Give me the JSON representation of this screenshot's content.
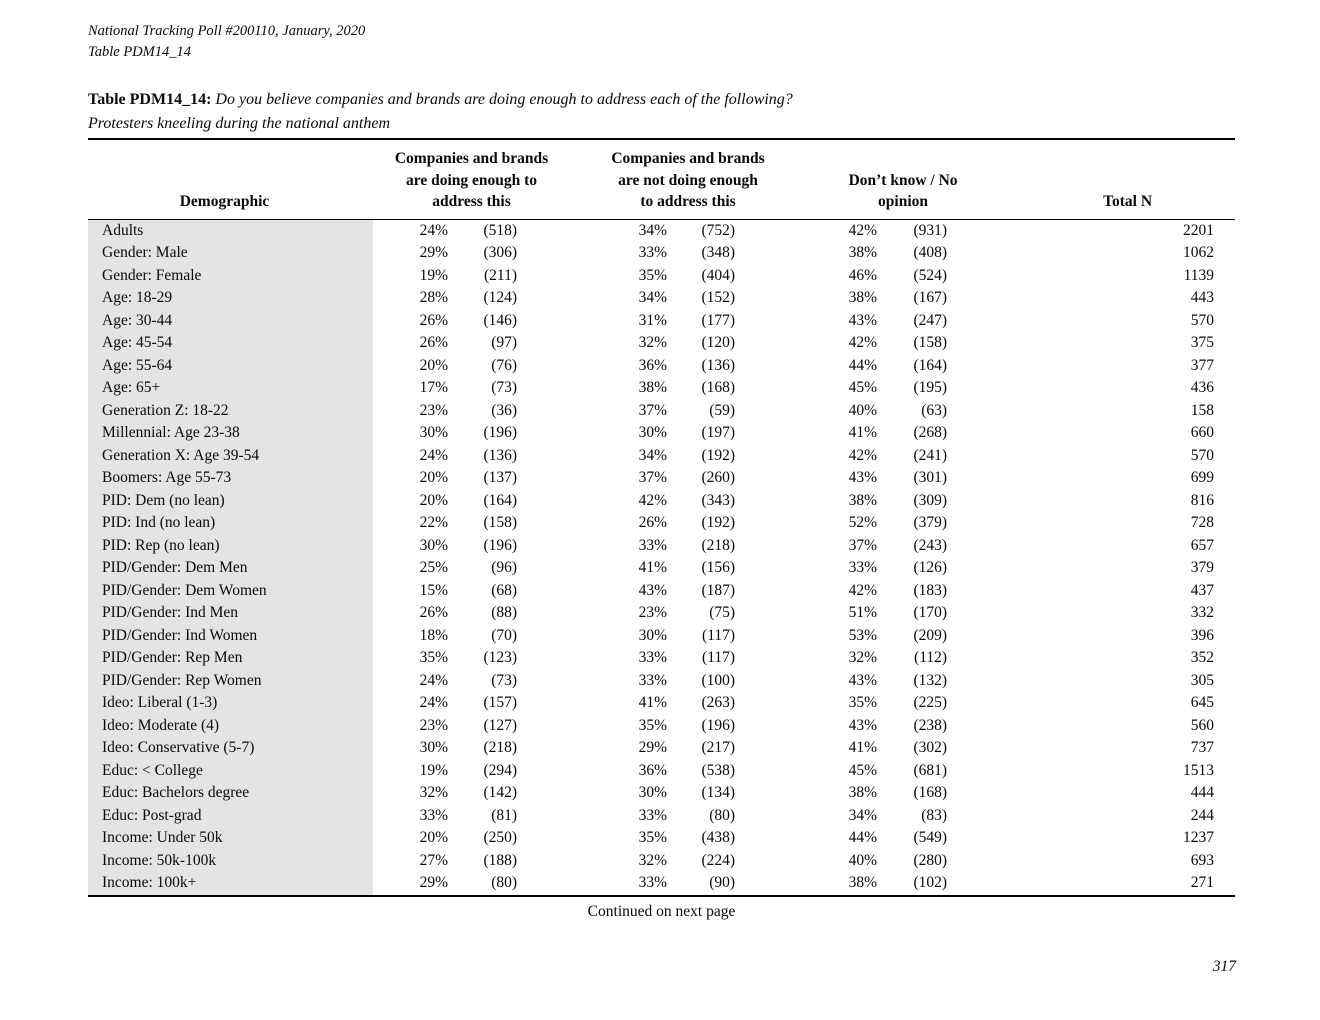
{
  "page": {
    "header_line1": "National Tracking Poll #200110, January, 2020",
    "header_line2": "Table PDM14_14",
    "continued": "Continued on next page",
    "page_number": "317"
  },
  "table": {
    "title_label": "Table PDM14_14:",
    "title_question": "Do you believe companies and brands are doing enough to address each of the following?",
    "subtitle": "Protesters kneeling during the national anthem",
    "columns": {
      "demographic": "Demographic",
      "group_doing": [
        "Companies and brands",
        "are doing enough to",
        "address this"
      ],
      "group_not_doing": [
        "Companies and brands",
        "are not doing enough",
        "to address this"
      ],
      "group_dk": [
        "Don’t know / No",
        "opinion"
      ],
      "total": "Total N"
    },
    "rows": [
      {
        "demographic": "Adults",
        "doing_pct": "24%",
        "doing_n": "(518)",
        "not_doing_pct": "34%",
        "not_doing_n": "(752)",
        "dk_pct": "42%",
        "dk_n": "(931)",
        "total_n": "2201"
      },
      {
        "demographic": "Gender: Male",
        "doing_pct": "29%",
        "doing_n": "(306)",
        "not_doing_pct": "33%",
        "not_doing_n": "(348)",
        "dk_pct": "38%",
        "dk_n": "(408)",
        "total_n": "1062"
      },
      {
        "demographic": "Gender: Female",
        "doing_pct": "19%",
        "doing_n": "(211)",
        "not_doing_pct": "35%",
        "not_doing_n": "(404)",
        "dk_pct": "46%",
        "dk_n": "(524)",
        "total_n": "1139"
      },
      {
        "demographic": "Age: 18-29",
        "doing_pct": "28%",
        "doing_n": "(124)",
        "not_doing_pct": "34%",
        "not_doing_n": "(152)",
        "dk_pct": "38%",
        "dk_n": "(167)",
        "total_n": "443"
      },
      {
        "demographic": "Age: 30-44",
        "doing_pct": "26%",
        "doing_n": "(146)",
        "not_doing_pct": "31%",
        "not_doing_n": "(177)",
        "dk_pct": "43%",
        "dk_n": "(247)",
        "total_n": "570"
      },
      {
        "demographic": "Age: 45-54",
        "doing_pct": "26%",
        "doing_n": "(97)",
        "not_doing_pct": "32%",
        "not_doing_n": "(120)",
        "dk_pct": "42%",
        "dk_n": "(158)",
        "total_n": "375"
      },
      {
        "demographic": "Age: 55-64",
        "doing_pct": "20%",
        "doing_n": "(76)",
        "not_doing_pct": "36%",
        "not_doing_n": "(136)",
        "dk_pct": "44%",
        "dk_n": "(164)",
        "total_n": "377"
      },
      {
        "demographic": "Age: 65+",
        "doing_pct": "17%",
        "doing_n": "(73)",
        "not_doing_pct": "38%",
        "not_doing_n": "(168)",
        "dk_pct": "45%",
        "dk_n": "(195)",
        "total_n": "436"
      },
      {
        "demographic": "Generation Z: 18-22",
        "doing_pct": "23%",
        "doing_n": "(36)",
        "not_doing_pct": "37%",
        "not_doing_n": "(59)",
        "dk_pct": "40%",
        "dk_n": "(63)",
        "total_n": "158"
      },
      {
        "demographic": "Millennial: Age 23-38",
        "doing_pct": "30%",
        "doing_n": "(196)",
        "not_doing_pct": "30%",
        "not_doing_n": "(197)",
        "dk_pct": "41%",
        "dk_n": "(268)",
        "total_n": "660"
      },
      {
        "demographic": "Generation X: Age 39-54",
        "doing_pct": "24%",
        "doing_n": "(136)",
        "not_doing_pct": "34%",
        "not_doing_n": "(192)",
        "dk_pct": "42%",
        "dk_n": "(241)",
        "total_n": "570"
      },
      {
        "demographic": "Boomers: Age 55-73",
        "doing_pct": "20%",
        "doing_n": "(137)",
        "not_doing_pct": "37%",
        "not_doing_n": "(260)",
        "dk_pct": "43%",
        "dk_n": "(301)",
        "total_n": "699"
      },
      {
        "demographic": "PID: Dem (no lean)",
        "doing_pct": "20%",
        "doing_n": "(164)",
        "not_doing_pct": "42%",
        "not_doing_n": "(343)",
        "dk_pct": "38%",
        "dk_n": "(309)",
        "total_n": "816"
      },
      {
        "demographic": "PID: Ind (no lean)",
        "doing_pct": "22%",
        "doing_n": "(158)",
        "not_doing_pct": "26%",
        "not_doing_n": "(192)",
        "dk_pct": "52%",
        "dk_n": "(379)",
        "total_n": "728"
      },
      {
        "demographic": "PID: Rep (no lean)",
        "doing_pct": "30%",
        "doing_n": "(196)",
        "not_doing_pct": "33%",
        "not_doing_n": "(218)",
        "dk_pct": "37%",
        "dk_n": "(243)",
        "total_n": "657"
      },
      {
        "demographic": "PID/Gender: Dem Men",
        "doing_pct": "25%",
        "doing_n": "(96)",
        "not_doing_pct": "41%",
        "not_doing_n": "(156)",
        "dk_pct": "33%",
        "dk_n": "(126)",
        "total_n": "379"
      },
      {
        "demographic": "PID/Gender: Dem Women",
        "doing_pct": "15%",
        "doing_n": "(68)",
        "not_doing_pct": "43%",
        "not_doing_n": "(187)",
        "dk_pct": "42%",
        "dk_n": "(183)",
        "total_n": "437"
      },
      {
        "demographic": "PID/Gender: Ind Men",
        "doing_pct": "26%",
        "doing_n": "(88)",
        "not_doing_pct": "23%",
        "not_doing_n": "(75)",
        "dk_pct": "51%",
        "dk_n": "(170)",
        "total_n": "332"
      },
      {
        "demographic": "PID/Gender: Ind Women",
        "doing_pct": "18%",
        "doing_n": "(70)",
        "not_doing_pct": "30%",
        "not_doing_n": "(117)",
        "dk_pct": "53%",
        "dk_n": "(209)",
        "total_n": "396"
      },
      {
        "demographic": "PID/Gender: Rep Men",
        "doing_pct": "35%",
        "doing_n": "(123)",
        "not_doing_pct": "33%",
        "not_doing_n": "(117)",
        "dk_pct": "32%",
        "dk_n": "(112)",
        "total_n": "352"
      },
      {
        "demographic": "PID/Gender: Rep Women",
        "doing_pct": "24%",
        "doing_n": "(73)",
        "not_doing_pct": "33%",
        "not_doing_n": "(100)",
        "dk_pct": "43%",
        "dk_n": "(132)",
        "total_n": "305"
      },
      {
        "demographic": "Ideo: Liberal (1-3)",
        "doing_pct": "24%",
        "doing_n": "(157)",
        "not_doing_pct": "41%",
        "not_doing_n": "(263)",
        "dk_pct": "35%",
        "dk_n": "(225)",
        "total_n": "645"
      },
      {
        "demographic": "Ideo: Moderate (4)",
        "doing_pct": "23%",
        "doing_n": "(127)",
        "not_doing_pct": "35%",
        "not_doing_n": "(196)",
        "dk_pct": "43%",
        "dk_n": "(238)",
        "total_n": "560"
      },
      {
        "demographic": "Ideo: Conservative (5-7)",
        "doing_pct": "30%",
        "doing_n": "(218)",
        "not_doing_pct": "29%",
        "not_doing_n": "(217)",
        "dk_pct": "41%",
        "dk_n": "(302)",
        "total_n": "737"
      },
      {
        "demographic": "Educ: < College",
        "doing_pct": "19%",
        "doing_n": "(294)",
        "not_doing_pct": "36%",
        "not_doing_n": "(538)",
        "dk_pct": "45%",
        "dk_n": "(681)",
        "total_n": "1513"
      },
      {
        "demographic": "Educ: Bachelors degree",
        "doing_pct": "32%",
        "doing_n": "(142)",
        "not_doing_pct": "30%",
        "not_doing_n": "(134)",
        "dk_pct": "38%",
        "dk_n": "(168)",
        "total_n": "444"
      },
      {
        "demographic": "Educ: Post-grad",
        "doing_pct": "33%",
        "doing_n": "(81)",
        "not_doing_pct": "33%",
        "not_doing_n": "(80)",
        "dk_pct": "34%",
        "dk_n": "(83)",
        "total_n": "244"
      },
      {
        "demographic": "Income: Under 50k",
        "doing_pct": "20%",
        "doing_n": "(250)",
        "not_doing_pct": "35%",
        "not_doing_n": "(438)",
        "dk_pct": "44%",
        "dk_n": "(549)",
        "total_n": "1237"
      },
      {
        "demographic": "Income: 50k-100k",
        "doing_pct": "27%",
        "doing_n": "(188)",
        "not_doing_pct": "32%",
        "not_doing_n": "(224)",
        "dk_pct": "40%",
        "dk_n": "(280)",
        "total_n": "693"
      },
      {
        "demographic": "Income: 100k+",
        "doing_pct": "29%",
        "doing_n": "(80)",
        "not_doing_pct": "33%",
        "not_doing_n": "(90)",
        "dk_pct": "38%",
        "dk_n": "(102)",
        "total_n": "271"
      }
    ]
  },
  "colors": {
    "row_shade": "#e4e4e4",
    "text": "#0a0a0a",
    "rule": "#000000"
  }
}
